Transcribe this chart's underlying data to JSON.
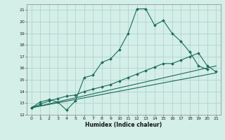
{
  "xlabel": "Humidex (Indice chaleur)",
  "bg_color": "#d4eee8",
  "grid_color": "#b0d4cc",
  "line_color": "#1a6b5a",
  "xlim": [
    -0.5,
    21.5
  ],
  "ylim": [
    12,
    21.5
  ],
  "xticks": [
    0,
    1,
    2,
    3,
    4,
    5,
    6,
    7,
    8,
    9,
    10,
    11,
    12,
    13,
    14,
    15,
    16,
    17,
    18,
    19,
    20,
    21
  ],
  "yticks": [
    12,
    13,
    14,
    15,
    16,
    17,
    18,
    19,
    20,
    21
  ],
  "series": [
    {
      "x": [
        0,
        1,
        2,
        3,
        4,
        5,
        6,
        7,
        8,
        9,
        10,
        11,
        12,
        13,
        14,
        15,
        16,
        17,
        18,
        19,
        20
      ],
      "y": [
        12.6,
        13.1,
        13.3,
        13.1,
        12.4,
        13.2,
        15.2,
        15.4,
        16.5,
        16.8,
        17.6,
        19.0,
        21.1,
        21.1,
        19.7,
        20.1,
        19.0,
        18.3,
        17.4,
        16.2,
        15.9
      ],
      "marker": true
    },
    {
      "x": [
        0,
        1,
        2,
        3,
        4,
        5,
        6,
        7,
        8,
        9,
        10,
        11,
        12,
        13,
        14,
        15,
        16,
        17,
        18,
        19,
        20,
        21
      ],
      "y": [
        12.6,
        12.9,
        13.2,
        13.4,
        13.6,
        13.7,
        14.0,
        14.2,
        14.4,
        14.6,
        14.9,
        15.2,
        15.5,
        15.8,
        16.1,
        16.4,
        16.4,
        16.7,
        17.0,
        17.3,
        16.2,
        15.7
      ],
      "marker": true
    },
    {
      "x": [
        0,
        21
      ],
      "y": [
        12.6,
        16.2
      ],
      "marker": false
    },
    {
      "x": [
        0,
        21
      ],
      "y": [
        12.6,
        15.6
      ],
      "marker": false
    }
  ]
}
